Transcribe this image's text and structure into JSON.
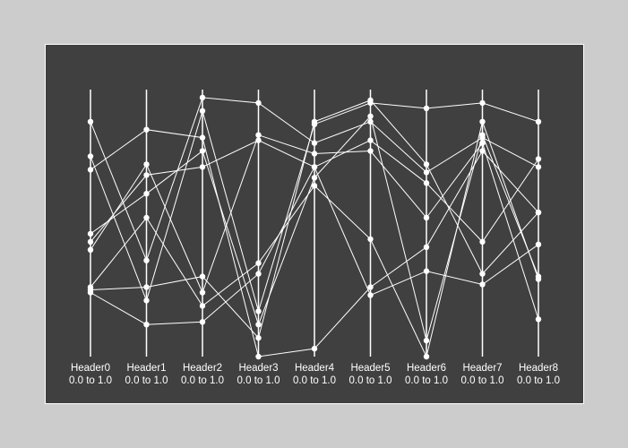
{
  "chart_data": {
    "type": "parallel-coordinates",
    "colors": {
      "background": "#404040",
      "foreground": "#ffffff",
      "page": "#cccccc"
    },
    "axes": [
      {
        "name": "Header0",
        "range_label": "0.0 to 1.0",
        "min": 0,
        "max": 1
      },
      {
        "name": "Header1",
        "range_label": "0.0 to 1.0",
        "min": 0,
        "max": 1
      },
      {
        "name": "Header2",
        "range_label": "0.0 to 1.0",
        "min": 0,
        "max": 1
      },
      {
        "name": "Header3",
        "range_label": "0.0 to 1.0",
        "min": 0,
        "max": 1
      },
      {
        "name": "Header4",
        "range_label": "0.0 to 1.0",
        "min": 0,
        "max": 1
      },
      {
        "name": "Header5",
        "range_label": "0.0 to 1.0",
        "min": 0,
        "max": 1
      },
      {
        "name": "Header6",
        "range_label": "0.0 to 1.0",
        "min": 0,
        "max": 1
      },
      {
        "name": "Header7",
        "range_label": "0.0 to 1.0",
        "min": 0,
        "max": 1
      },
      {
        "name": "Header8",
        "range_label": "0.0 to 1.0",
        "min": 0,
        "max": 1
      }
    ],
    "series": [
      {
        "values": [
          0.88,
          0.36,
          0.97,
          0.95,
          0.8,
          0.88,
          0.69,
          0.82,
          0.71
        ]
      },
      {
        "values": [
          0.75,
          0.21,
          0.92,
          0.17,
          0.87,
          0.95,
          0.93,
          0.95,
          0.88
        ]
      },
      {
        "values": [
          0.7,
          0.85,
          0.82,
          0.0,
          0.03,
          0.26,
          0.41,
          0.77,
          0.54
        ]
      },
      {
        "values": [
          0.43,
          0.68,
          0.71,
          0.81,
          0.71,
          0.81,
          0.65,
          0.43,
          0.74
        ]
      },
      {
        "values": [
          0.46,
          0.61,
          0.77,
          0.12,
          0.67,
          0.9,
          0.06,
          0.83,
          0.3
        ]
      },
      {
        "values": [
          0.4,
          0.72,
          0.24,
          0.83,
          0.76,
          0.77,
          0.52,
          0.8,
          0.14
        ]
      },
      {
        "values": [
          0.26,
          0.52,
          0.19,
          0.35,
          0.64,
          0.44,
          0.0,
          0.88,
          0.29
        ]
      },
      {
        "values": [
          0.25,
          0.26,
          0.3,
          0.07,
          0.88,
          0.96,
          0.72,
          0.31,
          0.54
        ]
      },
      {
        "values": [
          0.24,
          0.12,
          0.13,
          0.31,
          0.71,
          0.23,
          0.32,
          0.27,
          0.42
        ]
      }
    ]
  }
}
